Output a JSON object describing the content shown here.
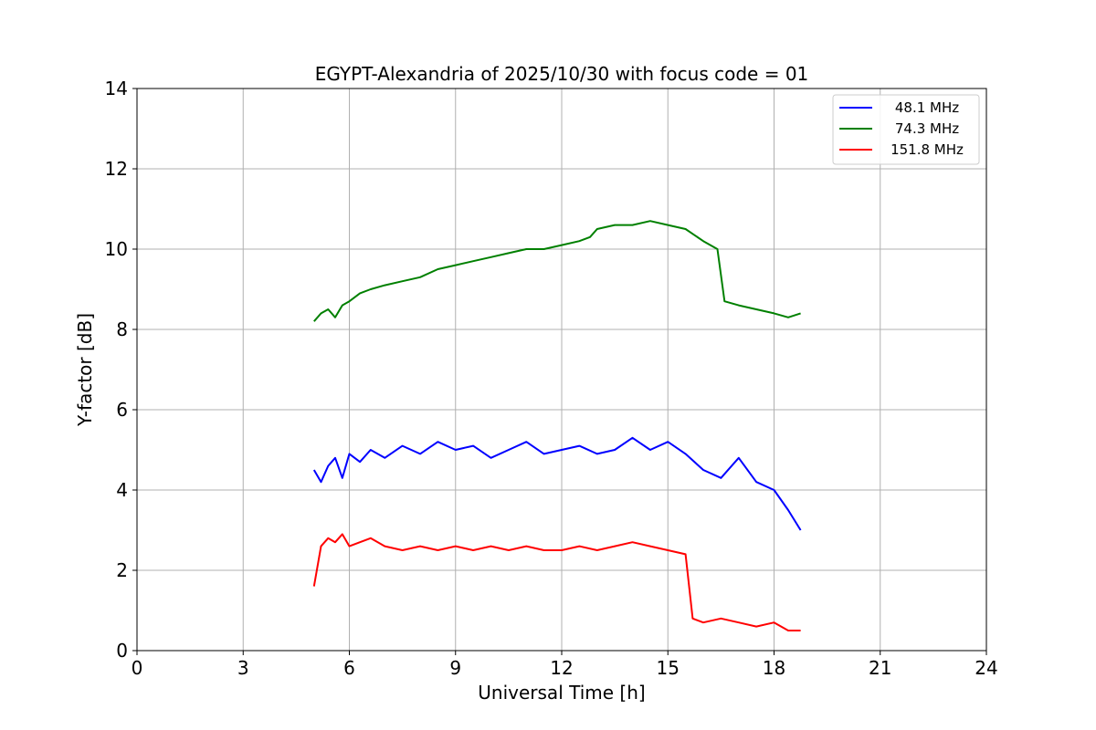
{
  "chart_data": {
    "type": "line",
    "title": "EGYPT-Alexandria of 2025/10/30 with focus code = 01",
    "xlabel": "Universal Time [h]",
    "ylabel": "Y-factor [dB]",
    "xlim": [
      0,
      24
    ],
    "ylim": [
      0,
      14
    ],
    "xticks": [
      0,
      3,
      6,
      9,
      12,
      15,
      18,
      21,
      24
    ],
    "yticks": [
      0,
      2,
      4,
      6,
      8,
      10,
      12,
      14
    ],
    "grid": true,
    "legend_position": "top-right",
    "series": [
      {
        "name": "48.1 MHz",
        "color": "#0000ff",
        "x": [
          5.0,
          5.2,
          5.4,
          5.6,
          5.8,
          6.0,
          6.3,
          6.6,
          7.0,
          7.5,
          8.0,
          8.5,
          9.0,
          9.5,
          10.0,
          10.5,
          11.0,
          11.5,
          12.0,
          12.5,
          13.0,
          13.5,
          14.0,
          14.5,
          15.0,
          15.5,
          16.0,
          16.5,
          17.0,
          17.5,
          18.0,
          18.4,
          18.75
        ],
        "values": [
          4.5,
          4.2,
          4.6,
          4.8,
          4.3,
          4.9,
          4.7,
          5.0,
          4.8,
          5.1,
          4.9,
          5.2,
          5.0,
          5.1,
          4.8,
          5.0,
          5.2,
          4.9,
          5.0,
          5.1,
          4.9,
          5.0,
          5.3,
          5.0,
          5.2,
          4.9,
          4.5,
          4.3,
          4.8,
          4.2,
          4.0,
          3.5,
          3.0
        ]
      },
      {
        "name": "74.3 MHz",
        "color": "#008000",
        "x": [
          5.0,
          5.2,
          5.4,
          5.6,
          5.8,
          6.0,
          6.3,
          6.6,
          7.0,
          7.5,
          8.0,
          8.5,
          9.0,
          9.5,
          10.0,
          10.5,
          11.0,
          11.5,
          12.0,
          12.5,
          12.8,
          13.0,
          13.5,
          14.0,
          14.5,
          15.0,
          15.5,
          16.0,
          16.4,
          16.6,
          17.0,
          17.5,
          18.0,
          18.4,
          18.75
        ],
        "values": [
          8.2,
          8.4,
          8.5,
          8.3,
          8.6,
          8.7,
          8.9,
          9.0,
          9.1,
          9.2,
          9.3,
          9.5,
          9.6,
          9.7,
          9.8,
          9.9,
          10.0,
          10.0,
          10.1,
          10.2,
          10.3,
          10.5,
          10.6,
          10.6,
          10.7,
          10.6,
          10.5,
          10.2,
          10.0,
          8.7,
          8.6,
          8.5,
          8.4,
          8.3,
          8.4
        ]
      },
      {
        "name": "151.8 MHz",
        "color": "#ff0000",
        "x": [
          5.0,
          5.2,
          5.4,
          5.6,
          5.8,
          6.0,
          6.3,
          6.6,
          7.0,
          7.5,
          8.0,
          8.5,
          9.0,
          9.5,
          10.0,
          10.5,
          11.0,
          11.5,
          12.0,
          12.5,
          13.0,
          13.5,
          14.0,
          14.5,
          15.0,
          15.5,
          15.7,
          16.0,
          16.5,
          17.0,
          17.5,
          18.0,
          18.4,
          18.75
        ],
        "values": [
          1.6,
          2.6,
          2.8,
          2.7,
          2.9,
          2.6,
          2.7,
          2.8,
          2.6,
          2.5,
          2.6,
          2.5,
          2.6,
          2.5,
          2.6,
          2.5,
          2.6,
          2.5,
          2.5,
          2.6,
          2.5,
          2.6,
          2.7,
          2.6,
          2.5,
          2.4,
          0.8,
          0.7,
          0.8,
          0.7,
          0.6,
          0.7,
          0.5,
          0.5
        ]
      }
    ]
  }
}
